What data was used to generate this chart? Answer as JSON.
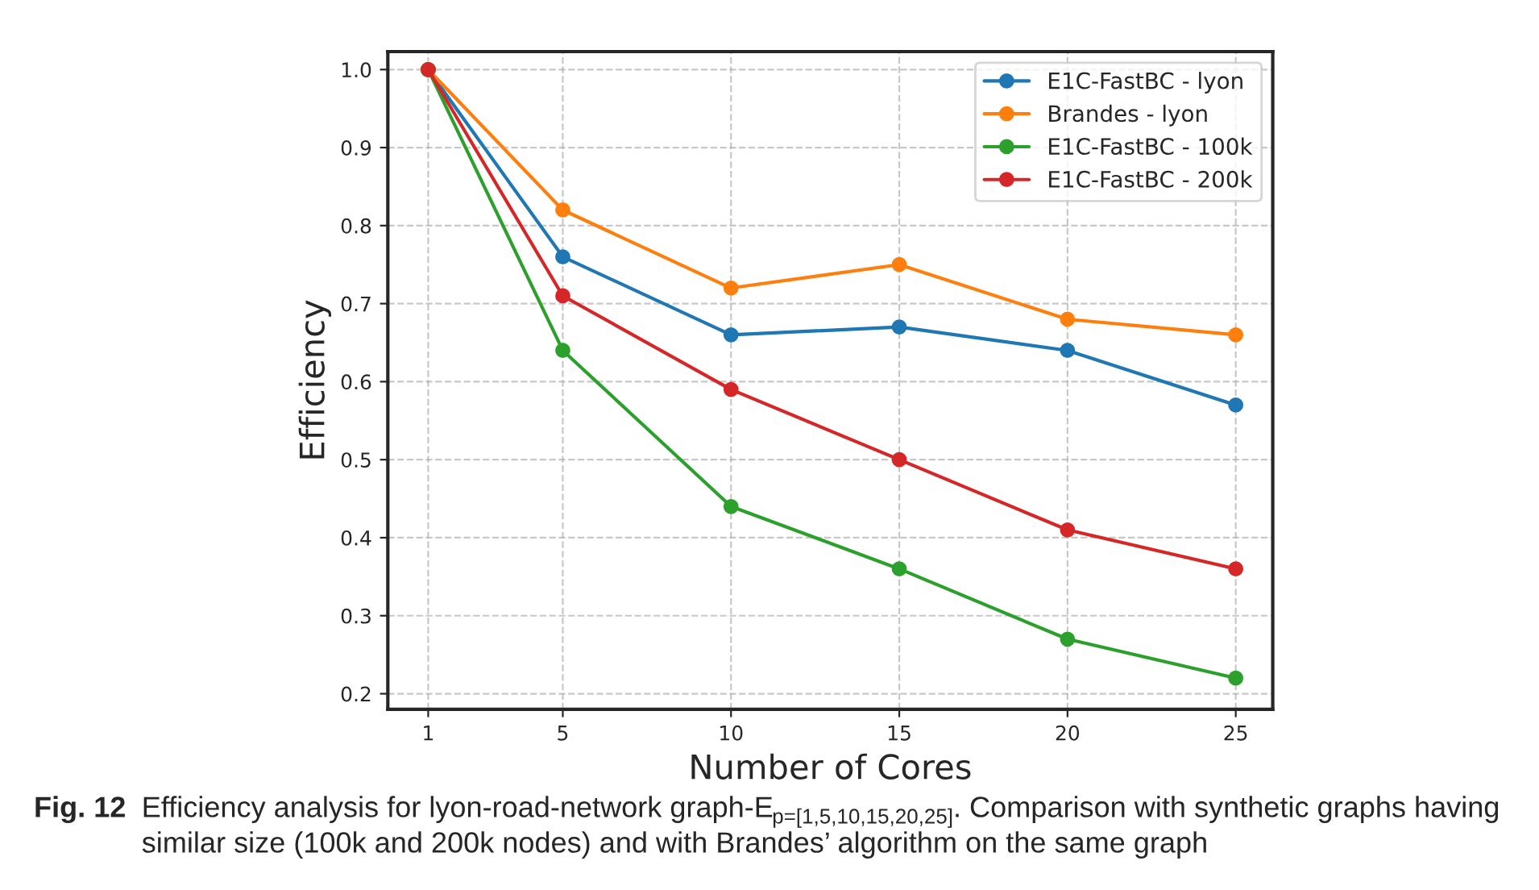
{
  "chart_data": {
    "type": "line",
    "xlabel": "Number of Cores",
    "ylabel": "Efficiency",
    "x": [
      1,
      5,
      10,
      15,
      20,
      25
    ],
    "series": [
      {
        "name": "E1C-FastBC - lyon",
        "color": "#1f77b4",
        "values": [
          1.0,
          0.76,
          0.66,
          0.67,
          0.64,
          0.57
        ]
      },
      {
        "name": "Brandes - lyon",
        "color": "#ff7f0e",
        "values": [
          1.0,
          0.82,
          0.72,
          0.75,
          0.68,
          0.66
        ]
      },
      {
        "name": "E1C-FastBC - 100k",
        "color": "#2ca02c",
        "values": [
          1.0,
          0.64,
          0.44,
          0.36,
          0.27,
          0.22
        ]
      },
      {
        "name": "E1C-FastBC - 200k",
        "color": "#d62728",
        "values": [
          1.0,
          0.71,
          0.59,
          0.5,
          0.41,
          0.36
        ]
      }
    ],
    "xlim": [
      -0.2,
      26.1
    ],
    "xticks": [
      1,
      5,
      10,
      15,
      20,
      25
    ],
    "ylim": [
      0.18,
      1.023
    ],
    "yticks": [
      0.2,
      0.3,
      0.4,
      0.5,
      0.6,
      0.7,
      0.8,
      0.9,
      {
        "value": 1.0,
        "label": "1.0"
      }
    ],
    "grid": true,
    "legend": "top right",
    "marker": "circle",
    "line_style": "solid",
    "annotations": [
      "Fig. 12",
      "Efficiency analysis for lyon-road-network graph-E$_{p=[1,5,10,15,20,25]}$. Comparison with synthetic graphs having similar size (100k and 200k nodes) and with Brandes’ algorithm on the same graph"
    ]
  }
}
